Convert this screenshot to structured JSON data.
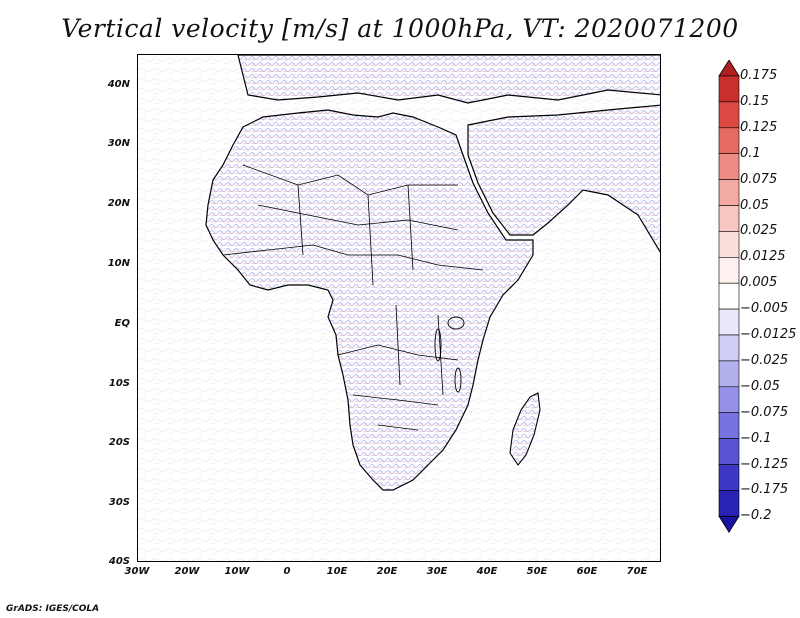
{
  "title": "Vertical velocity [m/s] at 1000hPa, VT: 2020071200",
  "credit": "GrADS: IGES/COLA",
  "map": {
    "lat_labels": [
      "40N",
      "30N",
      "20N",
      "10N",
      "EQ",
      "10S",
      "20S",
      "30S",
      "40S"
    ],
    "lon_labels": [
      "30W",
      "20W",
      "10W",
      "0",
      "10E",
      "20E",
      "30E",
      "40E",
      "50E",
      "60E",
      "70E"
    ],
    "lon_range": [
      -30,
      75
    ],
    "lat_range": [
      -40,
      44
    ]
  },
  "colorbar": {
    "labels": [
      "0.175",
      "0.15",
      "0.125",
      "0.1",
      "0.075",
      "0.05",
      "0.025",
      "0.0125",
      "0.005",
      "−0.005",
      "−0.0125",
      "−0.025",
      "−0.05",
      "−0.075",
      "−0.1",
      "−0.125",
      "−0.175",
      "−0.2"
    ],
    "colors": [
      "#b0201f",
      "#c8302e",
      "#dc4a44",
      "#e56b63",
      "#ed8c84",
      "#f2aaa3",
      "#f7c6c1",
      "#fbdfdc",
      "#fdf0ee",
      "#ffffff",
      "#e9e8fb",
      "#cfcdf5",
      "#b3b0ee",
      "#9591e6",
      "#7772dd",
      "#5a54d2",
      "#3e37c4",
      "#2a22b4",
      "#1a12a0"
    ]
  }
}
